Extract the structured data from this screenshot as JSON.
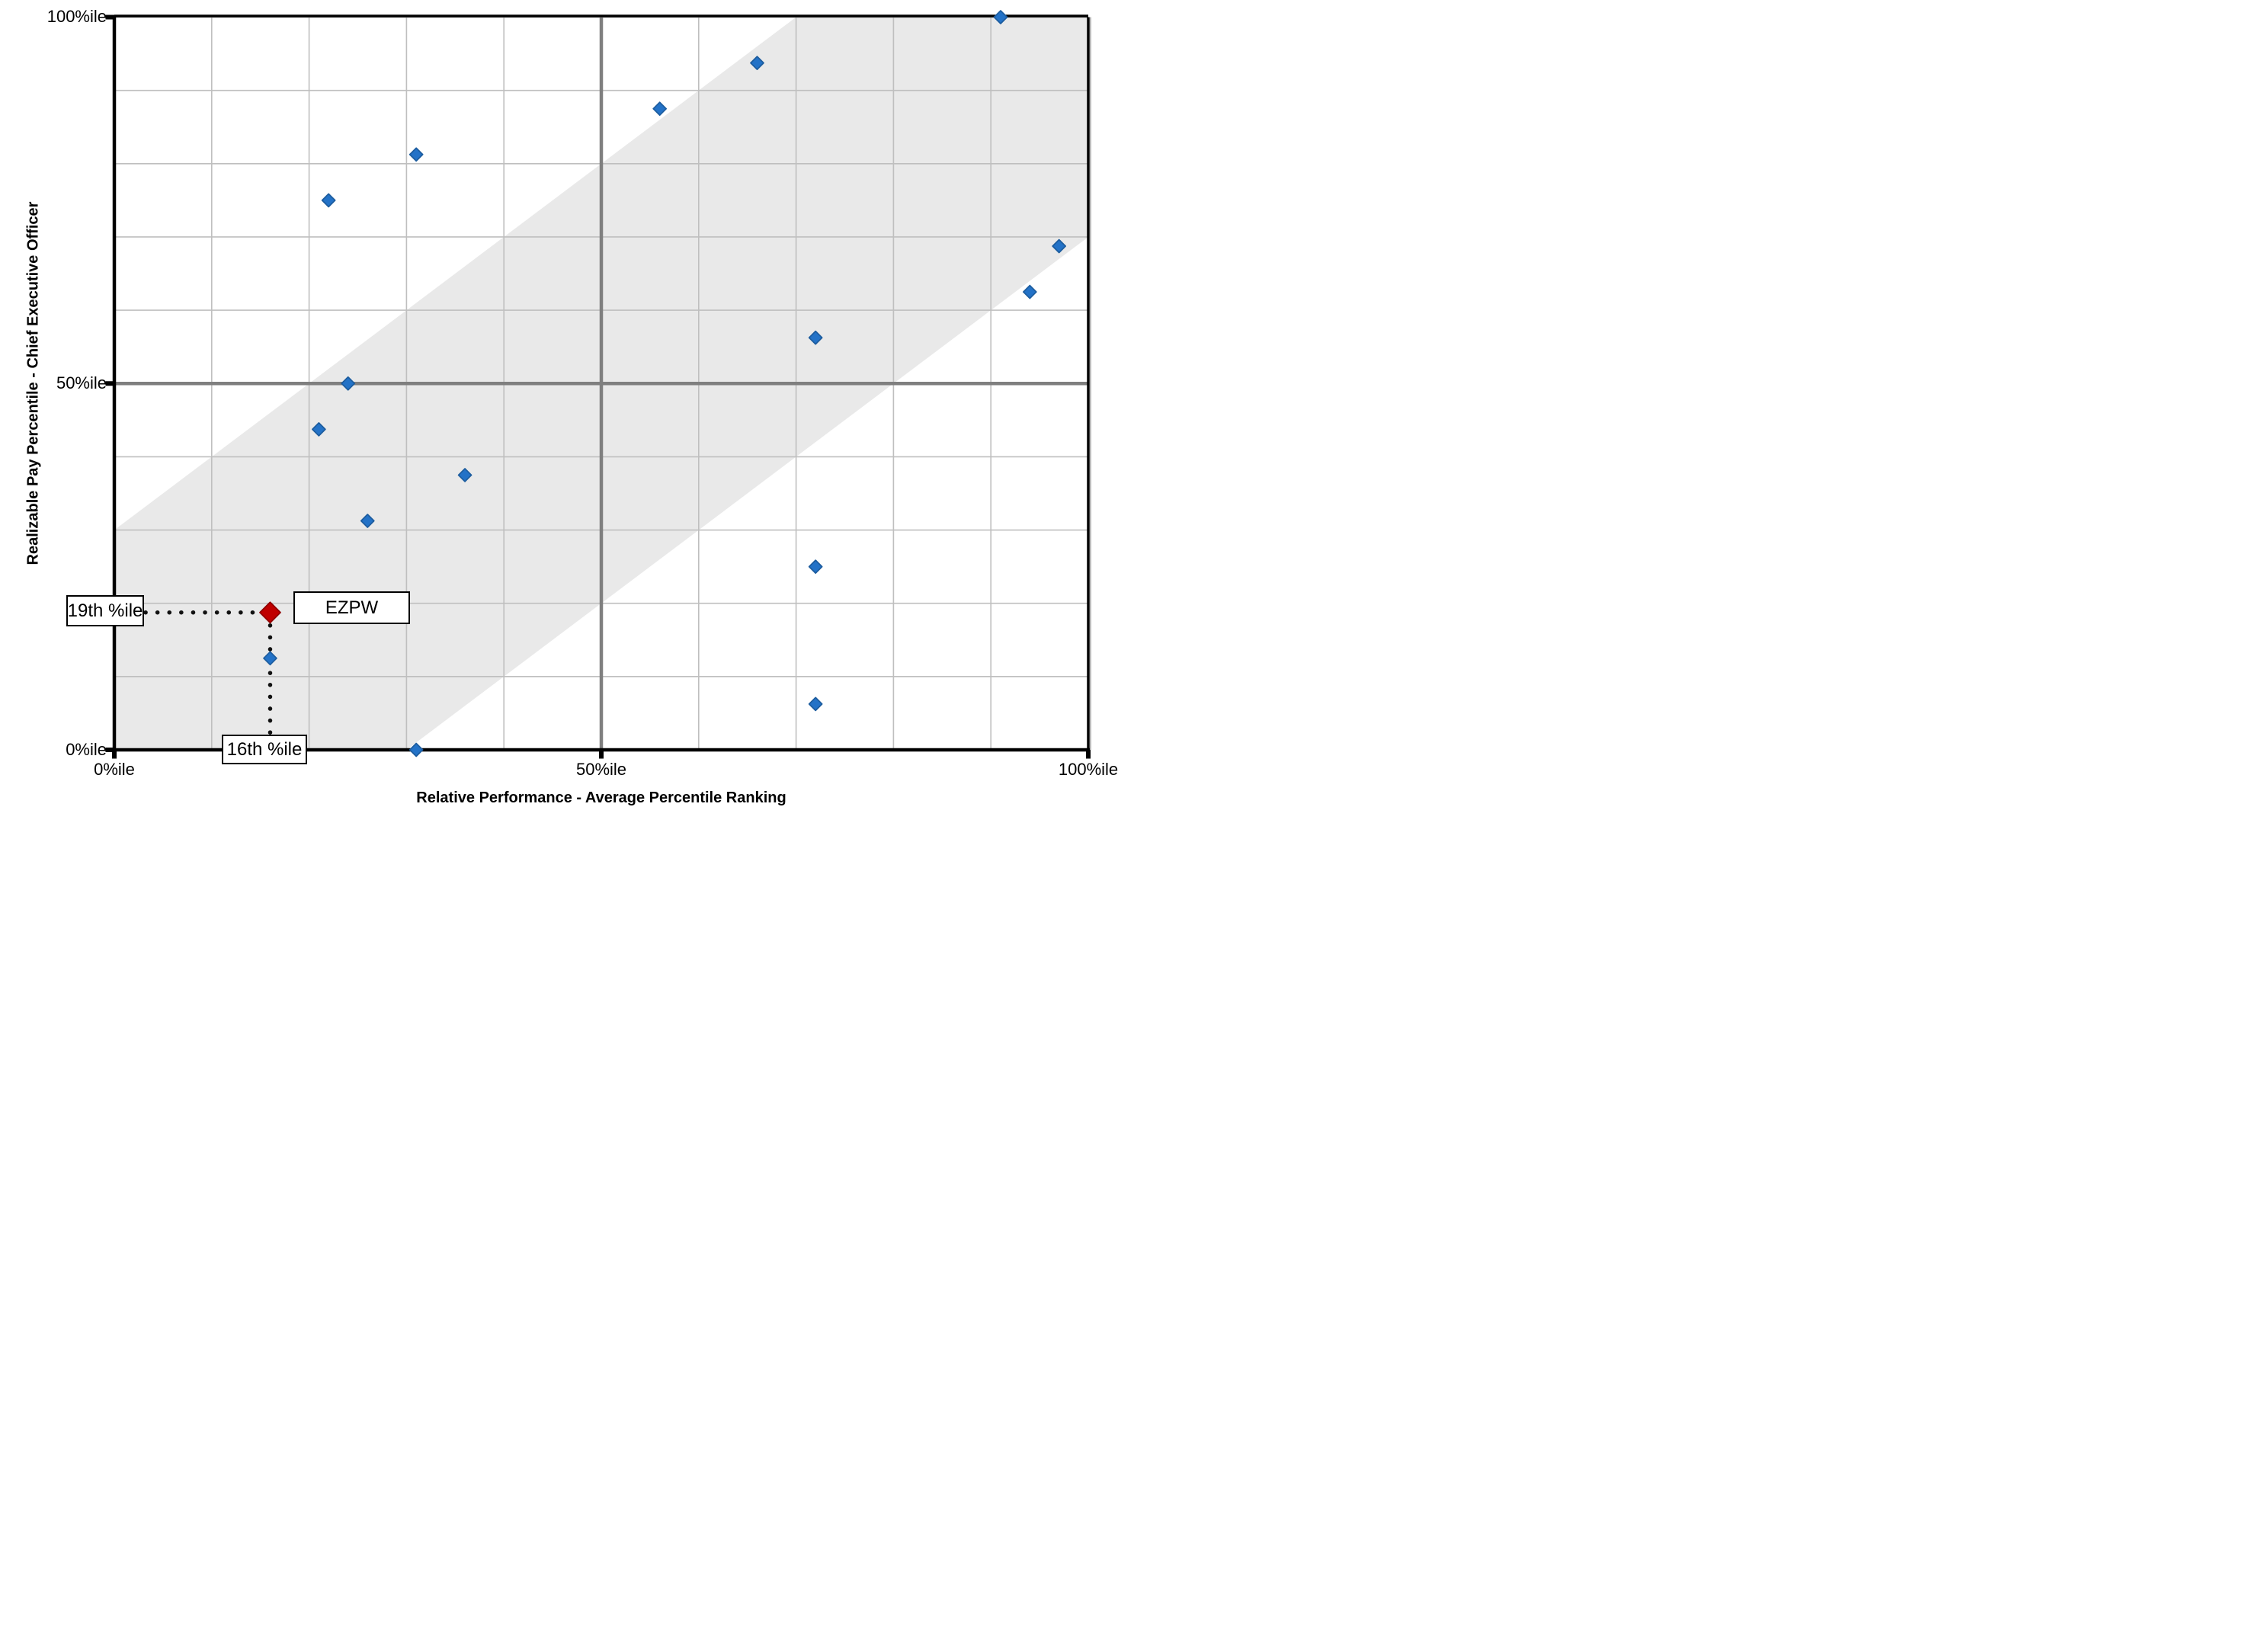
{
  "chart_data": {
    "type": "scatter",
    "title": "",
    "xlabel": "Relative Performance - Average Percentile Ranking",
    "ylabel": "Realizable Pay Percentile - Chief Executive Officer",
    "xlim": [
      0,
      100
    ],
    "ylim": [
      0,
      100
    ],
    "x_ticks": [
      {
        "value": 0,
        "label": "0%ile"
      },
      {
        "value": 50,
        "label": "50%ile"
      },
      {
        "value": 100,
        "label": "100%ile"
      }
    ],
    "y_ticks": [
      {
        "value": 0,
        "label": "0%ile"
      },
      {
        "value": 50,
        "label": "50%ile"
      },
      {
        "value": 100,
        "label": "100%ile"
      }
    ],
    "grid": {
      "step": 10,
      "minor_color": "#BFBFBF",
      "major_color": "#7F7F7F",
      "on": true
    },
    "band": {
      "type": "diagonal-alignment-zone",
      "between": [
        "y = x - 30",
        "y = x + 30"
      ],
      "offset": 30,
      "color": "#E9E9E9"
    },
    "series": [
      {
        "name": "peer-companies",
        "marker": "diamond",
        "fill": "#2372C7",
        "stroke": "#1C5C9E",
        "points": [
          [
            91,
            100
          ],
          [
            66,
            93.75
          ],
          [
            56,
            87.5
          ],
          [
            31,
            81.25
          ],
          [
            22,
            75
          ],
          [
            97,
            68.75
          ],
          [
            94,
            62.5
          ],
          [
            72,
            56.25
          ],
          [
            24,
            50
          ],
          [
            21,
            43.75
          ],
          [
            36,
            37.5
          ],
          [
            26,
            31.25
          ],
          [
            72,
            25
          ],
          [
            16,
            12.5
          ],
          [
            72,
            6.25
          ],
          [
            31,
            0
          ]
        ]
      },
      {
        "name": "EZPW",
        "marker": "diamond",
        "fill": "#C00000",
        "stroke": "#900000",
        "points": [
          [
            16,
            18.75
          ]
        ]
      }
    ],
    "annotations": {
      "pay_label": "19th %ile",
      "company_label": "EZPW",
      "performance_label": "16th %ile"
    },
    "legend": {
      "position": "none"
    }
  }
}
